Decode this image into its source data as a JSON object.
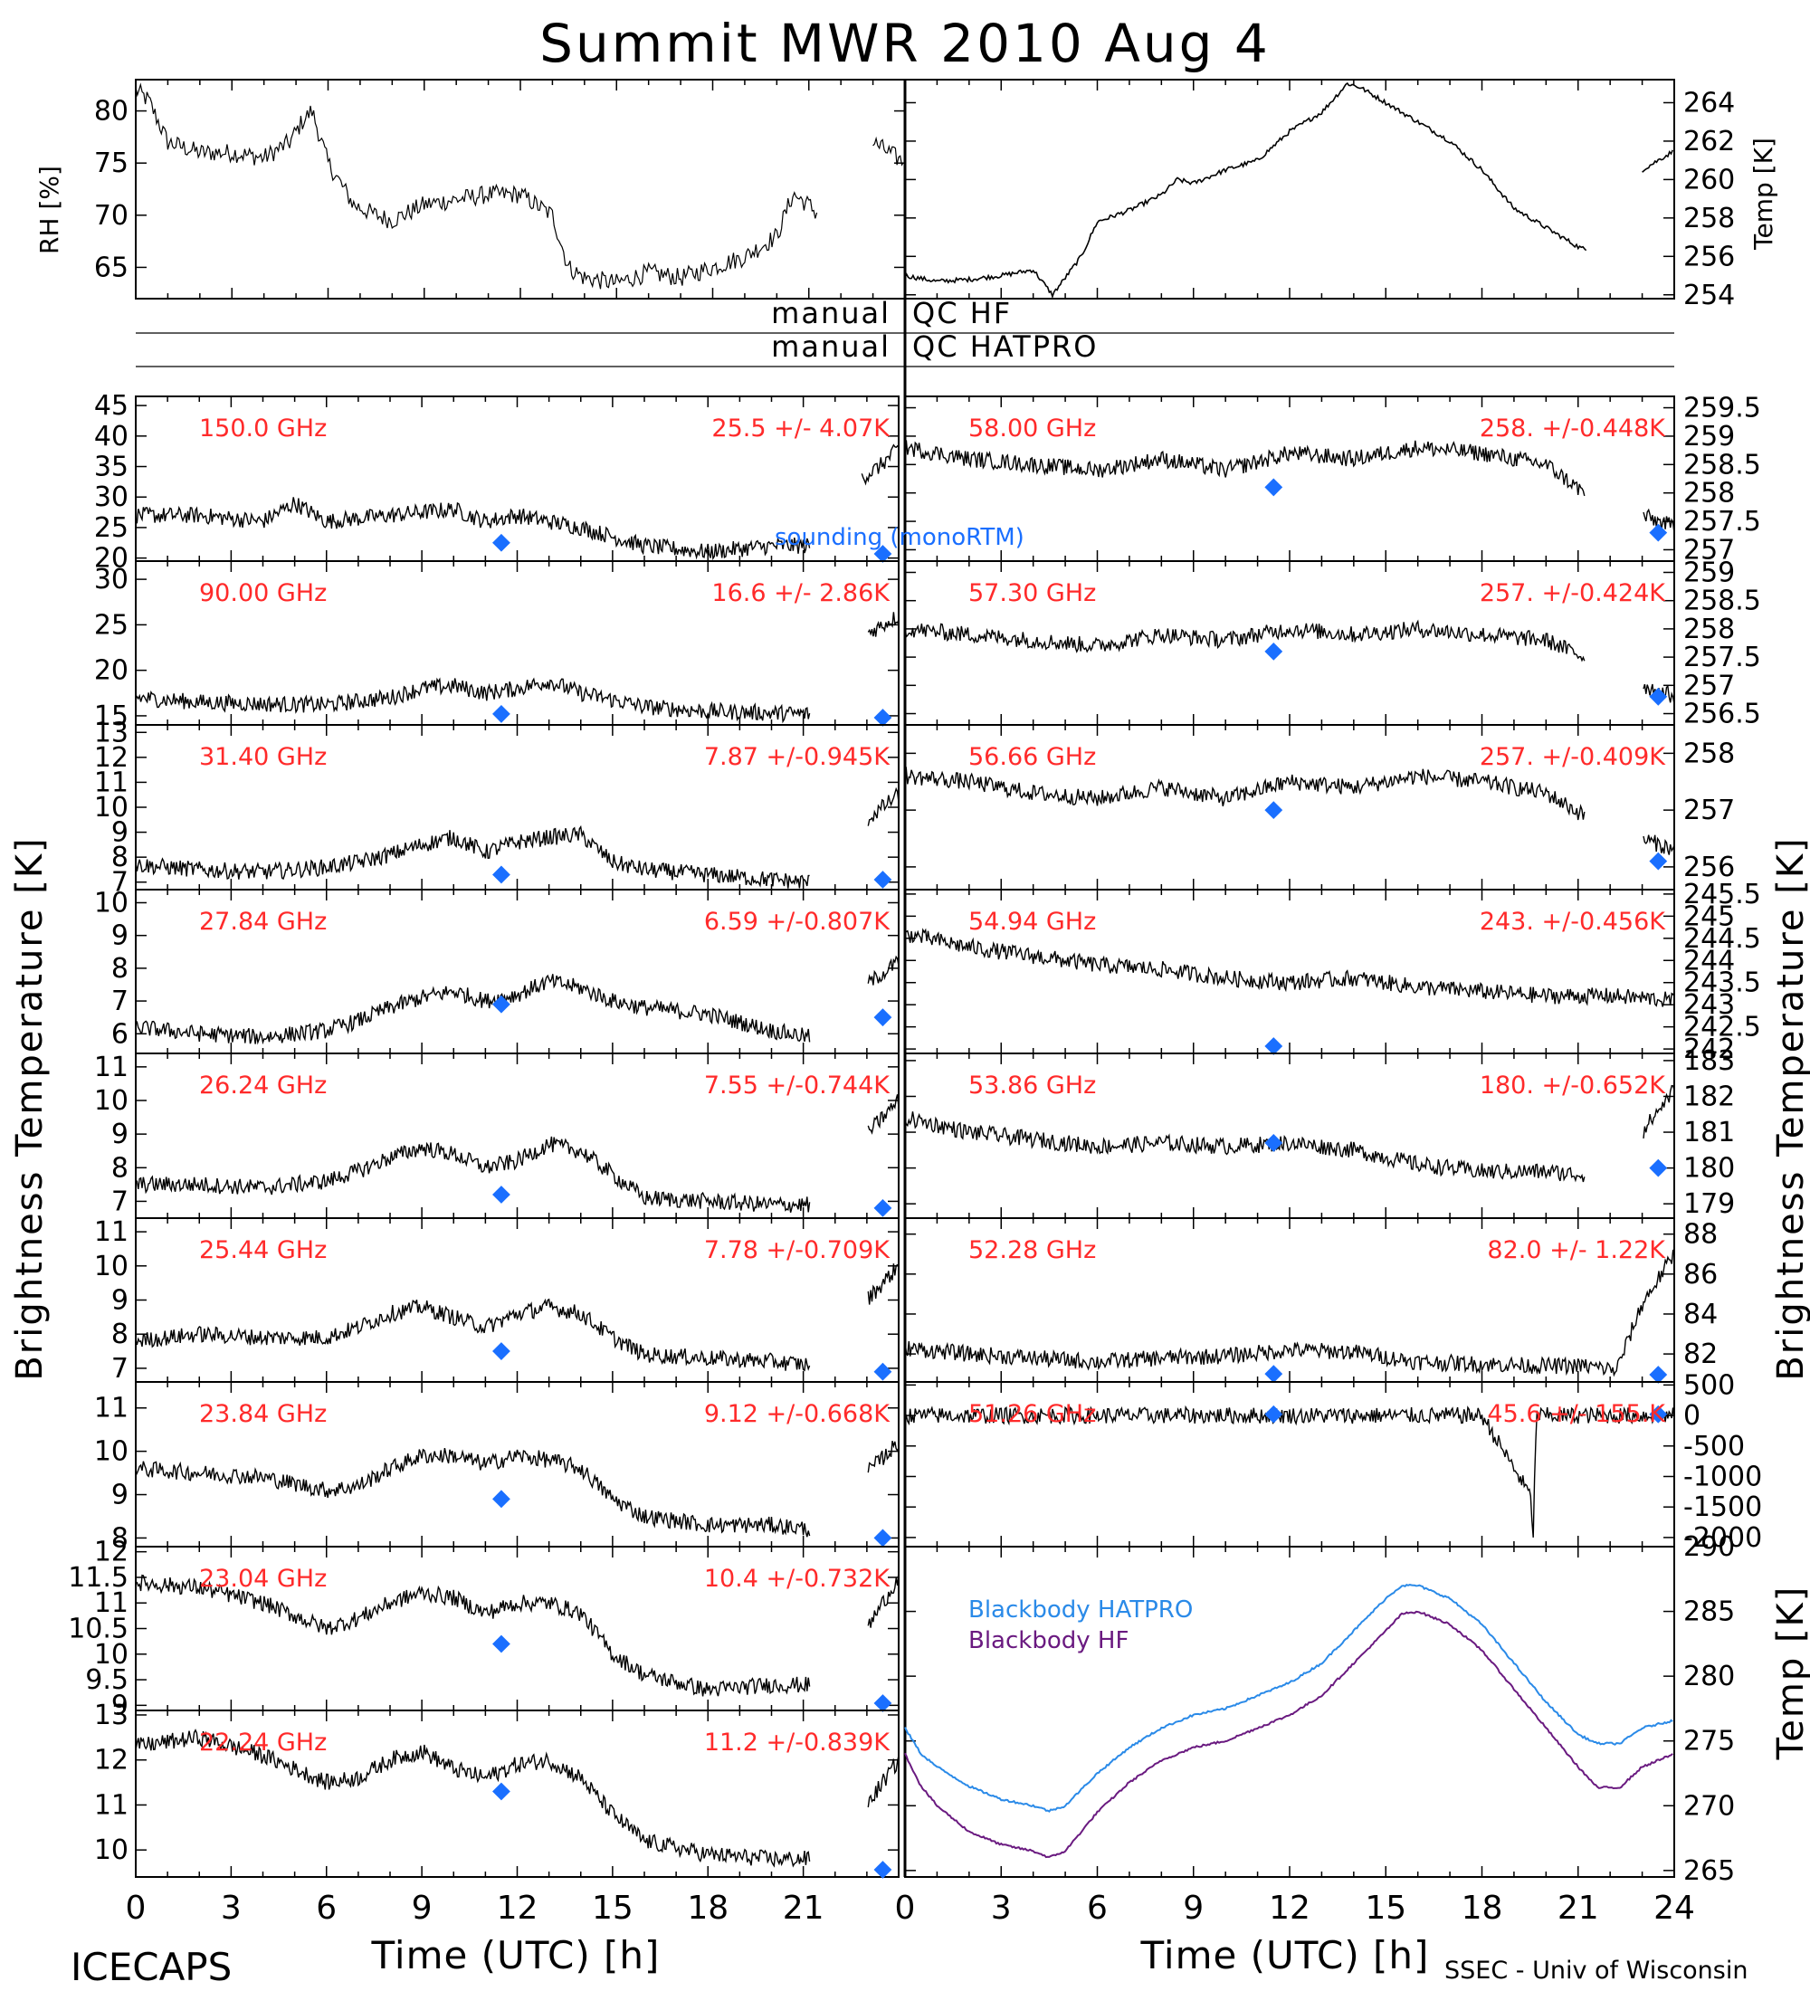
{
  "title": "Summit MWR 2010 Aug  4",
  "xlabel": "Time (UTC) [h]",
  "left_ylabel": "Brightness Temperature [K]",
  "right_ylabel": "Brightness Temperature [K]",
  "footer_left": "ICECAPS",
  "footer_right": "SSEC - Univ of Wisconsin",
  "sounding_label": "sounding (monoRTM)",
  "top_panels": {
    "left": {
      "ylabel": "RH [%]",
      "ylim": [
        62,
        83
      ],
      "ticks": [
        65,
        70,
        75,
        80
      ]
    },
    "right": {
      "ylabel": "Temp [K]",
      "ylim": [
        253.8,
        265.2
      ],
      "ticks": [
        254,
        256,
        258,
        260,
        262,
        264
      ]
    }
  },
  "qc_bars": [
    {
      "left": "manual",
      "right": "QC HF"
    },
    {
      "left": "manual",
      "right": "QC HATPRO"
    }
  ],
  "blackbody": {
    "ylabel": "Temp [K]",
    "ylim": [
      264.5,
      290
    ],
    "ticks": [
      265,
      270,
      275,
      280,
      285,
      290
    ],
    "series": [
      {
        "name": "Blackbody HATPRO",
        "color": "#2a8ae8"
      },
      {
        "name": "Blackbody HF",
        "color": "#6a1a80"
      }
    ]
  },
  "colors": {
    "label": "#ff2a2a",
    "sounding": "#1a6fff",
    "ink": "#000000"
  },
  "chart_data": [
    {
      "type": "line",
      "title": "RH",
      "ylabel": "RH [%]",
      "ylim": [
        62,
        83
      ],
      "x": [
        0,
        0.4,
        1,
        2,
        3,
        4,
        4.8,
        5.2,
        5.5,
        6,
        6.8,
        7.5,
        8,
        9,
        10,
        11,
        12,
        12.5,
        13,
        13.5,
        14,
        15,
        16,
        17,
        18,
        19,
        20,
        20.5,
        21,
        21.3,
        22.2,
        23,
        24
      ],
      "y": [
        82,
        81,
        77,
        76,
        76,
        75.5,
        77,
        79,
        80,
        75,
        71,
        70,
        69.5,
        71,
        71.5,
        72,
        72,
        71,
        70,
        65,
        64,
        63.5,
        64.5,
        64,
        65,
        66,
        68,
        72,
        71,
        70,
        null,
        77,
        75
      ]
    },
    {
      "type": "line",
      "title": "Temp",
      "ylabel": "Temp [K]",
      "ylim": [
        253.8,
        265.2
      ],
      "x": [
        0,
        1,
        2,
        3,
        4,
        4.6,
        5.5,
        6,
        7,
        8,
        8.5,
        9,
        10,
        11,
        12,
        13,
        13.8,
        14.2,
        15,
        16,
        17,
        18,
        19,
        20,
        21,
        21.3,
        22.2,
        23,
        24
      ],
      "y": [
        255,
        254.7,
        254.8,
        255,
        255.3,
        254,
        256,
        257.8,
        258.4,
        259.2,
        260,
        259.8,
        260.5,
        261,
        262.5,
        263.5,
        265,
        264.8,
        264,
        263,
        262,
        260.5,
        258.5,
        257.5,
        256.5,
        256.3,
        null,
        260.5,
        261.5
      ]
    },
    {
      "type": "scatter",
      "title": "150.0 GHz",
      "label": "25.5 +/-  4.07K",
      "ylim": [
        19.5,
        46.5
      ],
      "ticks": [
        20,
        25,
        30,
        35,
        40,
        45
      ],
      "sounding": [
        [
          11.5,
          22.5
        ],
        [
          23.5,
          19.8
        ]
      ],
      "x": [
        0,
        2,
        4,
        5,
        6,
        8,
        10,
        11,
        12,
        14,
        16,
        18,
        20,
        21.2,
        22.2,
        22.8,
        23.4,
        24
      ],
      "y": [
        27,
        27,
        26,
        29,
        26,
        27,
        28,
        26,
        27,
        25,
        22,
        21,
        22,
        22,
        null,
        33,
        35,
        38
      ]
    },
    {
      "type": "scatter",
      "title": "90.00 GHz",
      "label": "16.6 +/-  2.86K",
      "ylim": [
        14,
        32
      ],
      "ticks": [
        15,
        20,
        25,
        30
      ],
      "sounding": [
        [
          11.5,
          15.2
        ],
        [
          23.5,
          14.3
        ]
      ],
      "x": [
        0,
        2,
        4,
        6,
        8,
        9,
        10,
        11,
        12,
        13,
        14,
        16,
        18,
        20,
        21.2,
        22.2,
        23,
        24
      ],
      "y": [
        17,
        16.5,
        16.3,
        16.2,
        17,
        18,
        18.3,
        17.5,
        18,
        18.8,
        17.5,
        16,
        15.5,
        15.3,
        15.2,
        null,
        24,
        26
      ]
    },
    {
      "type": "scatter",
      "title": "31.40 GHz",
      "label": "7.87 +/-0.945K",
      "ylim": [
        6.7,
        13.3
      ],
      "ticks": [
        7,
        8,
        9,
        10,
        11,
        12,
        13
      ],
      "sounding": [
        [
          11.5,
          7.3
        ],
        [
          23.5,
          7.1
        ]
      ],
      "x": [
        0,
        2,
        4,
        6,
        7,
        8,
        9,
        10,
        11,
        12,
        13,
        14,
        15,
        16,
        18,
        20,
        21.2,
        22.2,
        23,
        24
      ],
      "y": [
        7.7,
        7.5,
        7.4,
        7.6,
        7.8,
        8.1,
        8.5,
        8.8,
        8.2,
        8.6,
        8.8,
        8.9,
        7.8,
        7.5,
        7.3,
        7.1,
        7.0,
        null,
        9.5,
        10.5
      ]
    },
    {
      "type": "scatter",
      "title": "27.84 GHz",
      "label": "6.59 +/-0.807K",
      "ylim": [
        5.4,
        10.4
      ],
      "ticks": [
        6,
        7,
        8,
        9,
        10
      ],
      "sounding": [
        [
          11.5,
          6.9
        ],
        [
          23.5,
          6.5
        ]
      ],
      "x": [
        0,
        2,
        4,
        6,
        7,
        8,
        9,
        10,
        11,
        12,
        13,
        14,
        15,
        16,
        18,
        20,
        21.2,
        22.2,
        23,
        24
      ],
      "y": [
        6.2,
        6.0,
        5.9,
        6.1,
        6.4,
        6.8,
        7.1,
        7.3,
        7.0,
        7.2,
        7.6,
        7.4,
        7.0,
        6.8,
        6.6,
        6.1,
        5.9,
        null,
        7.5,
        8.2
      ]
    },
    {
      "type": "scatter",
      "title": "26.24 GHz",
      "label": "7.55 +/-0.744K",
      "ylim": [
        6.5,
        11.4
      ],
      "ticks": [
        7,
        8,
        9,
        10,
        11
      ],
      "sounding": [
        [
          11.5,
          7.2
        ],
        [
          23.5,
          6.8
        ]
      ],
      "x": [
        0,
        2,
        4,
        6,
        7,
        8,
        9,
        10,
        11,
        12,
        13,
        14,
        15,
        16,
        18,
        20,
        21.2,
        22.2,
        23,
        24
      ],
      "y": [
        7.5,
        7.5,
        7.4,
        7.6,
        7.9,
        8.3,
        8.6,
        8.4,
        8.0,
        8.2,
        8.7,
        8.5,
        7.8,
        7.1,
        7.0,
        6.9,
        6.9,
        null,
        9.0,
        10.0
      ]
    },
    {
      "type": "scatter",
      "title": "25.44 GHz",
      "label": "7.78 +/-0.709K",
      "ylim": [
        6.6,
        11.4
      ],
      "ticks": [
        7,
        8,
        9,
        10,
        11
      ],
      "sounding": [
        [
          11.5,
          7.5
        ],
        [
          23.5,
          6.9
        ]
      ],
      "x": [
        0,
        2,
        4,
        6,
        7,
        8,
        9,
        10,
        11,
        12,
        13,
        14,
        15,
        16,
        18,
        20,
        21.2,
        22.2,
        23,
        24
      ],
      "y": [
        7.8,
        8.0,
        7.9,
        7.9,
        8.2,
        8.6,
        8.8,
        8.5,
        8.2,
        8.6,
        8.8,
        8.6,
        7.9,
        7.4,
        7.3,
        7.2,
        7.1,
        null,
        9.0,
        10.0
      ]
    },
    {
      "type": "scatter",
      "title": "23.84 GHz",
      "label": "9.12 +/-0.668K",
      "ylim": [
        7.8,
        11.6
      ],
      "ticks": [
        8,
        9,
        10,
        11
      ],
      "sounding": [
        [
          11.5,
          8.9
        ],
        [
          23.5,
          8.0
        ]
      ],
      "x": [
        0,
        2,
        4,
        6,
        7,
        8,
        9,
        10,
        11,
        12,
        13,
        14,
        15,
        16,
        18,
        20,
        21.2,
        22.2,
        23,
        24
      ],
      "y": [
        9.6,
        9.5,
        9.4,
        9.1,
        9.2,
        9.6,
        9.9,
        9.9,
        9.7,
        9.9,
        9.8,
        9.6,
        8.9,
        8.5,
        8.3,
        8.3,
        8.2,
        null,
        9.5,
        10.2
      ]
    },
    {
      "type": "scatter",
      "title": "23.04 GHz",
      "label": "10.4 +/-0.732K",
      "ylim": [
        8.9,
        12.1
      ],
      "ticks": [
        9.0,
        9.5,
        10.0,
        10.5,
        11.0,
        11.5,
        12.0
      ],
      "sounding": [
        [
          11.5,
          10.2
        ],
        [
          23.5,
          8.9
        ]
      ],
      "x": [
        0,
        2,
        4,
        6,
        7,
        8,
        9,
        10,
        11,
        12,
        13,
        14,
        15,
        16,
        18,
        20,
        21.2,
        22.2,
        23,
        24
      ],
      "y": [
        11.4,
        11.3,
        11.0,
        10.5,
        10.7,
        11.0,
        11.2,
        11.1,
        10.8,
        11.0,
        11.0,
        10.8,
        10.0,
        9.6,
        9.3,
        9.4,
        9.4,
        null,
        10.5,
        11.5
      ]
    },
    {
      "type": "scatter",
      "title": "22.24 GHz",
      "label": "11.2 +/-0.839K",
      "ylim": [
        9.4,
        13.1
      ],
      "ticks": [
        10,
        11,
        12,
        13
      ],
      "sounding": [
        [
          11.5,
          11.3
        ],
        [
          23.5,
          9.5
        ]
      ],
      "x": [
        0,
        2,
        4,
        6,
        7,
        8,
        9,
        10,
        11,
        12,
        13,
        14,
        15,
        16,
        18,
        20,
        21.2,
        22.2,
        23,
        24
      ],
      "y": [
        12.3,
        12.5,
        12.1,
        11.5,
        11.6,
        12.0,
        12.2,
        11.8,
        11.6,
        11.9,
        12.0,
        11.6,
        10.8,
        10.2,
        9.9,
        9.8,
        9.8,
        null,
        11.0,
        12.0
      ]
    },
    {
      "type": "scatter",
      "title": "58.00 GHz",
      "label": "258. +/-0.448K",
      "ylim": [
        256.8,
        259.7
      ],
      "ticks": [
        257.0,
        257.5,
        258.0,
        258.5,
        259.0,
        259.5
      ],
      "sounding": [
        [
          11.5,
          258.1
        ],
        [
          23.5,
          257.3
        ]
      ],
      "x": [
        0,
        2,
        4,
        6,
        8,
        10,
        12,
        14,
        16,
        18,
        20,
        21.2,
        22.2,
        23,
        24
      ],
      "y": [
        258.8,
        258.6,
        258.5,
        258.4,
        258.6,
        258.4,
        258.7,
        258.6,
        258.8,
        258.7,
        258.5,
        258.0,
        null,
        257.6,
        257.4
      ]
    },
    {
      "type": "scatter",
      "title": "57.30 GHz",
      "label": "257. +/-0.424K",
      "ylim": [
        256.3,
        259.2
      ],
      "ticks": [
        256.5,
        257.0,
        257.5,
        258.0,
        258.5,
        259.0
      ],
      "sounding": [
        [
          11.5,
          257.6
        ],
        [
          23.5,
          256.8
        ]
      ],
      "x": [
        0,
        2,
        4,
        6,
        8,
        10,
        12,
        14,
        16,
        18,
        20,
        21.2,
        22.2,
        23,
        24
      ],
      "y": [
        258.0,
        257.9,
        257.8,
        257.7,
        257.9,
        257.8,
        258.0,
        257.9,
        258.0,
        257.9,
        257.8,
        257.5,
        null,
        257.0,
        256.8
      ]
    },
    {
      "type": "scatter",
      "title": "56.66 GHz",
      "label": "257. +/-0.409K",
      "ylim": [
        255.6,
        258.5
      ],
      "ticks": [
        256,
        257,
        258
      ],
      "sounding": [
        [
          11.5,
          257.0
        ],
        [
          23.5,
          256.1
        ]
      ],
      "x": [
        0,
        2,
        4,
        6,
        8,
        10,
        12,
        14,
        16,
        18,
        20,
        21.2,
        22.2,
        23,
        24
      ],
      "y": [
        257.6,
        257.5,
        257.3,
        257.2,
        257.4,
        257.2,
        257.5,
        257.4,
        257.6,
        257.5,
        257.3,
        256.9,
        null,
        256.5,
        256.3
      ]
    },
    {
      "type": "scatter",
      "title": "54.94 GHz",
      "label": "243. +/-0.456K",
      "ylim": [
        241.9,
        245.6
      ],
      "ticks": [
        242.0,
        242.5,
        243.0,
        243.5,
        244.0,
        244.5,
        245.0,
        245.5
      ],
      "sounding": [
        [
          11.5,
          242.0
        ]
      ],
      "x": [
        0,
        2,
        4,
        6,
        8,
        10,
        12,
        14,
        16,
        18,
        20,
        22,
        24
      ],
      "y": [
        244.6,
        244.3,
        244.1,
        243.9,
        243.8,
        243.6,
        243.5,
        243.6,
        243.4,
        243.3,
        243.2,
        243.2,
        243.1
      ]
    },
    {
      "type": "scatter",
      "title": "53.86 GHz",
      "label": "180. +/-0.652K",
      "ylim": [
        178.6,
        183.2
      ],
      "ticks": [
        179,
        180,
        181,
        182,
        183
      ],
      "sounding": [
        [
          11.5,
          180.7
        ],
        [
          23.5,
          180.0
        ]
      ],
      "x": [
        0,
        2,
        4,
        6,
        8,
        10,
        12,
        14,
        16,
        18,
        20,
        21.2,
        22.2,
        23,
        24
      ],
      "y": [
        181.4,
        181.0,
        180.8,
        180.6,
        180.7,
        180.6,
        180.7,
        180.5,
        180.1,
        179.9,
        179.9,
        179.8,
        null,
        181.0,
        182.2
      ]
    },
    {
      "type": "scatter",
      "title": "52.28 GHz",
      "label": "82.0 +/- 1.22K",
      "ylim": [
        80.6,
        88.8
      ],
      "ticks": [
        82,
        84,
        86,
        88
      ],
      "sounding": [
        [
          11.5,
          81.0
        ],
        [
          23.5,
          80.7
        ]
      ],
      "x": [
        0,
        2,
        4,
        6,
        8,
        10,
        12,
        14,
        16,
        18,
        20,
        21.2,
        22.2,
        23,
        24
      ],
      "y": [
        82.3,
        82.0,
        81.8,
        81.6,
        81.8,
        81.9,
        82.2,
        82.1,
        81.6,
        81.5,
        81.4,
        81.4,
        81.2,
        84.5,
        87.0
      ]
    },
    {
      "type": "scatter",
      "title": "51.26 GHz",
      "label": "45.6 +/-  155.K",
      "ylim": [
        -2150,
        550
      ],
      "ticks": [
        500,
        0,
        -500,
        -1000,
        -1500,
        -2000
      ],
      "sounding": [
        [
          11.5,
          20
        ],
        [
          23.5,
          20
        ]
      ],
      "x": [
        0,
        6,
        12,
        18,
        19.5,
        19.6,
        19.7,
        24
      ],
      "y": [
        0,
        0,
        0,
        0,
        -1300,
        -1900,
        0,
        0
      ]
    },
    {
      "type": "line",
      "title": "Blackbody",
      "ylabel": "Temp [K]",
      "ylim": [
        264.5,
        290
      ],
      "x": [
        0,
        0.5,
        1,
        2,
        3,
        4,
        4.5,
        5,
        6,
        7,
        8,
        9,
        10,
        11,
        12,
        13,
        14,
        15,
        15.5,
        16,
        17,
        18,
        19,
        20,
        21,
        21.6,
        22.3,
        23,
        24
      ],
      "series": [
        {
          "name": "Blackbody HATPRO",
          "values": [
            276,
            274,
            273,
            271.5,
            270.5,
            270,
            269.6,
            270,
            272.5,
            274.5,
            276,
            277,
            277.5,
            278.5,
            279.5,
            281,
            283.5,
            286,
            287,
            287,
            286,
            284,
            281,
            278,
            275.5,
            274.8,
            274.8,
            276,
            276.6
          ]
        },
        {
          "name": "Blackbody HF",
          "values": [
            274,
            271.5,
            270,
            268,
            267,
            266.5,
            266,
            266.5,
            269.5,
            271.8,
            273.5,
            274.5,
            275,
            276,
            277,
            278.5,
            281,
            283.5,
            284.8,
            285,
            284,
            282,
            279,
            276,
            273,
            271.4,
            271.4,
            273,
            274
          ]
        }
      ]
    }
  ]
}
